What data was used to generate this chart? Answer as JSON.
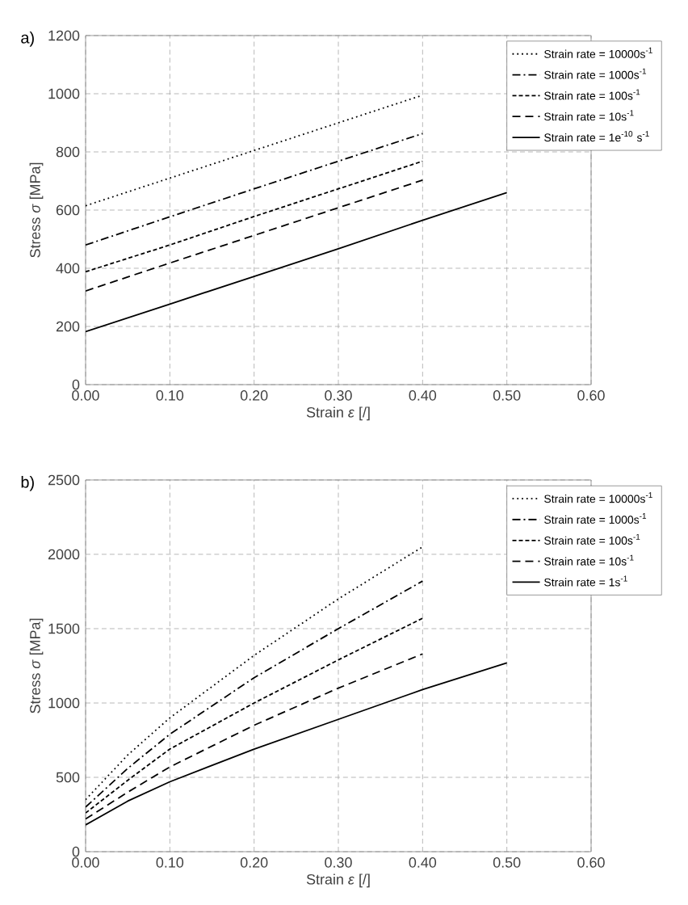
{
  "chart_data": [
    {
      "type": "line",
      "title": "a)",
      "xlabel": "Strain *ε* [/]",
      "ylabel": "Stress *σ* [MPa]",
      "xlim": [
        0,
        0.6
      ],
      "ylim": [
        0,
        1200
      ],
      "xticks": [
        {
          "value": 0,
          "label": "0.00"
        },
        {
          "value": 0.1,
          "label": "0.10"
        },
        {
          "value": 0.2,
          "label": "0.20"
        },
        {
          "value": 0.3,
          "label": "0.30"
        },
        {
          "value": 0.4,
          "label": "0.40"
        },
        {
          "value": 0.5,
          "label": "0.50"
        },
        {
          "value": 0.6,
          "label": "0.60"
        }
      ],
      "yticks": [
        0,
        200,
        400,
        600,
        800,
        1000,
        1200
      ],
      "grid": true,
      "legend": "top right",
      "series": [
        {
          "name": "Strain rate = 10000s$^{-1}$",
          "color": "#000000",
          "line_style": "dotted",
          "x": [
            0,
            0.1,
            0.2,
            0.3,
            0.4
          ],
          "values": [
            615,
            710,
            805,
            900,
            995
          ]
        },
        {
          "name": "Strain rate = 1000s$^{-1}$",
          "color": "#000000",
          "line_style": "dashdot",
          "x": [
            0,
            0.1,
            0.2,
            0.3,
            0.4
          ],
          "values": [
            480,
            577,
            673,
            768,
            863
          ]
        },
        {
          "name": "Strain rate = 100s$^{-1}$",
          "color": "#000000",
          "line_style": "dashed",
          "x": [
            0,
            0.1,
            0.2,
            0.3,
            0.4
          ],
          "values": [
            388,
            480,
            578,
            673,
            768
          ]
        },
        {
          "name": "Strain rate = 10s$^{-1}$",
          "color": "#000000",
          "line_style": "longdash",
          "x": [
            0,
            0.1,
            0.2,
            0.3,
            0.4
          ],
          "values": [
            322,
            418,
            513,
            608,
            703
          ]
        },
        {
          "name": "Strain rate = 1e$^{-10}$ s$^{-1}$",
          "color": "#000000",
          "line_style": "solid",
          "x": [
            0,
            0.1,
            0.2,
            0.3,
            0.4,
            0.5
          ],
          "values": [
            182,
            277,
            372,
            467,
            565,
            660
          ]
        }
      ]
    },
    {
      "type": "line",
      "title": "b)",
      "xlabel": "Strain *ε* [/]",
      "ylabel": "Stress *σ* [MPa]",
      "xlim": [
        0,
        0.6
      ],
      "ylim": [
        0,
        2500
      ],
      "xticks": [
        {
          "value": 0,
          "label": "0.00"
        },
        {
          "value": 0.1,
          "label": "0.10"
        },
        {
          "value": 0.2,
          "label": "0.20"
        },
        {
          "value": 0.3,
          "label": "0.30"
        },
        {
          "value": 0.4,
          "label": "0.40"
        },
        {
          "value": 0.5,
          "label": "0.50"
        },
        {
          "value": 0.6,
          "label": "0.60"
        }
      ],
      "yticks": [
        0,
        500,
        1000,
        1500,
        2000,
        2500
      ],
      "grid": true,
      "legend": "top right",
      "series": [
        {
          "name": "Strain rate = 10000s$^{-1}$",
          "color": "#000000",
          "line_style": "dotted",
          "x": [
            0,
            0.05,
            0.1,
            0.2,
            0.3,
            0.4
          ],
          "values": [
            350,
            650,
            900,
            1320,
            1700,
            2050
          ]
        },
        {
          "name": "Strain rate = 1000s$^{-1}$",
          "color": "#000000",
          "line_style": "dashdot",
          "x": [
            0,
            0.05,
            0.1,
            0.2,
            0.3,
            0.4
          ],
          "values": [
            300,
            560,
            790,
            1170,
            1500,
            1820
          ]
        },
        {
          "name": "Strain rate = 100s$^{-1}$",
          "color": "#000000",
          "line_style": "dashed",
          "x": [
            0,
            0.05,
            0.1,
            0.2,
            0.3,
            0.4
          ],
          "values": [
            260,
            480,
            690,
            1000,
            1290,
            1570
          ]
        },
        {
          "name": "Strain rate = 10s$^{-1}$",
          "color": "#000000",
          "line_style": "longdash",
          "x": [
            0,
            0.05,
            0.1,
            0.2,
            0.3,
            0.4
          ],
          "values": [
            220,
            400,
            570,
            850,
            1100,
            1330
          ]
        },
        {
          "name": "Strain rate = 1s$^{-1}$",
          "color": "#000000",
          "line_style": "solid",
          "x": [
            0,
            0.05,
            0.1,
            0.2,
            0.3,
            0.4,
            0.5
          ],
          "values": [
            180,
            340,
            470,
            690,
            890,
            1090,
            1270
          ]
        }
      ]
    }
  ]
}
